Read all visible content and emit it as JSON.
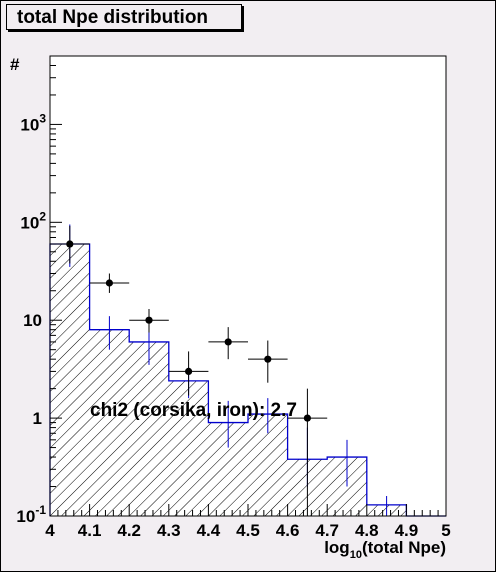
{
  "chart_data": {
    "type": "histogram",
    "title": "total Npe distribution",
    "xlabel_main": "log",
    "xlabel_sub": "10",
    "xlabel_rest": "(total Npe)",
    "ylabel": "#",
    "xlim": [
      4.0,
      5.0
    ],
    "ylim": [
      0.1,
      5000
    ],
    "yscale": "log",
    "x_ticks": [
      "4",
      "4.1",
      "4.2",
      "4.3",
      "4.4",
      "4.5",
      "4.6",
      "4.7",
      "4.8",
      "4.9",
      "5"
    ],
    "y_ticks": [
      {
        "base": "10",
        "exp": "-1",
        "value": 0.1
      },
      {
        "base": "1",
        "exp": "",
        "value": 1
      },
      {
        "base": "10",
        "exp": "",
        "value": 10
      },
      {
        "base": "10",
        "exp": "2",
        "value": 100
      },
      {
        "base": "10",
        "exp": "3",
        "value": 1000
      }
    ],
    "annotation": "chi2 (corsika, iron): 2.7",
    "mc_histogram": {
      "edges": [
        4.0,
        4.1,
        4.2,
        4.3,
        4.4,
        4.5,
        4.6,
        4.7,
        4.8,
        4.9,
        5.0
      ],
      "values": [
        60,
        8,
        6,
        2.4,
        0.9,
        1.1,
        0.38,
        0.4,
        0.13,
        0.0
      ],
      "errors": [
        [
          4.05,
          35,
          95
        ],
        [
          4.15,
          5,
          11
        ],
        [
          4.25,
          3.5,
          8.5
        ],
        [
          4.35,
          1.6,
          3.3
        ],
        [
          4.45,
          0.5,
          1.5
        ],
        [
          4.55,
          0.7,
          1.6
        ],
        [
          4.65,
          0.2,
          0.8
        ],
        [
          4.75,
          0.2,
          0.6
        ],
        [
          4.85,
          0.1,
          0.16
        ]
      ],
      "color": "#0000cc"
    },
    "data_points": [
      {
        "x": 4.05,
        "y": 60,
        "ylo": 38,
        "yhi": 92
      },
      {
        "x": 4.15,
        "y": 24,
        "ylo": 19,
        "yhi": 30
      },
      {
        "x": 4.25,
        "y": 10,
        "ylo": 7.5,
        "yhi": 13
      },
      {
        "x": 4.35,
        "y": 3,
        "ylo": 1.7,
        "yhi": 4.8
      },
      {
        "x": 4.45,
        "y": 6,
        "ylo": 4.0,
        "yhi": 8.5
      },
      {
        "x": 4.55,
        "y": 4,
        "ylo": 2.3,
        "yhi": 6.2
      },
      {
        "x": 4.65,
        "y": 1,
        "ylo": 0.1,
        "yhi": 2.0
      }
    ],
    "data_color": "#000000"
  }
}
